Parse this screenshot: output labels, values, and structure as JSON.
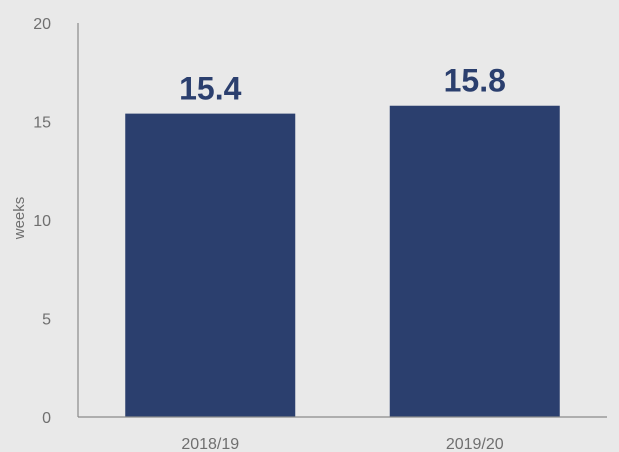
{
  "chart_data": {
    "type": "bar",
    "categories": [
      "2018/19",
      "2019/20"
    ],
    "values": [
      15.4,
      15.8
    ],
    "value_labels": [
      "15.4",
      "15.8"
    ],
    "title": "",
    "xlabel": "",
    "ylabel": "weeks",
    "ylim": [
      0,
      20
    ],
    "yticks": [
      0,
      5,
      10,
      15,
      20
    ],
    "ytick_labels": [
      "0",
      "5",
      "10",
      "15",
      "20"
    ],
    "grid": false,
    "legend": "none",
    "colors": {
      "bar": "#2b3f6e",
      "data_label": "#2b3f6e",
      "axis": "#8a8a8a",
      "background": "#e9e9e9"
    }
  }
}
